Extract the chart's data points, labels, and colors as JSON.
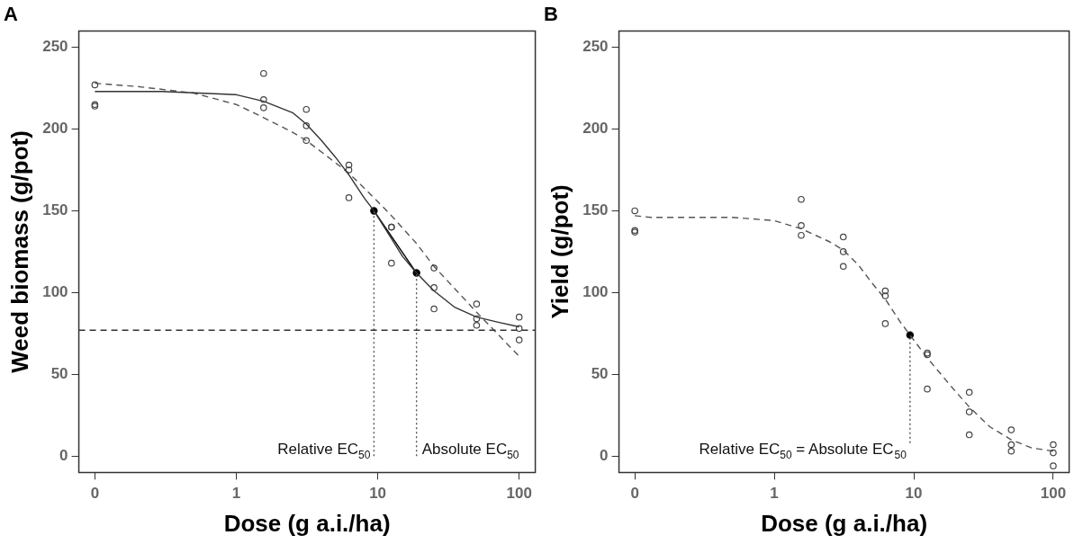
{
  "chart_data": [
    {
      "type": "scatter",
      "title": "A",
      "xlabel": "Dose (g a.i./ha)",
      "ylabel": "Weed biomass (g/pot)",
      "log": "x",
      "grid": false,
      "legend": false,
      "marker": "circle",
      "xlim": [
        0.077,
        130
      ],
      "xticks": [
        {
          "value": 0.1,
          "label": "0"
        },
        1,
        10,
        100
      ],
      "ylim": [
        -10,
        260
      ],
      "yticks": [
        0,
        50,
        100,
        150,
        200,
        250
      ],
      "series": [
        {
          "type": "scatter",
          "color": "#444444",
          "x": [
            0.1,
            0.1,
            0.1,
            1.56,
            1.56,
            1.56,
            3.125,
            3.125,
            3.125,
            6.25,
            6.25,
            6.25,
            12.5,
            12.5,
            12.5,
            25,
            25,
            25,
            50,
            50,
            50,
            100,
            100,
            100
          ],
          "values": [
            227,
            215,
            214,
            234,
            218,
            213,
            212,
            202,
            193,
            178,
            175,
            158,
            140,
            140,
            118,
            115,
            103,
            90,
            93,
            84,
            80,
            85,
            78,
            71
          ]
        },
        {
          "type": "line",
          "color": "#333333",
          "line_style": "solid",
          "marker": "none",
          "x": [
            0.1,
            0.3,
            1,
            1.56,
            2.5,
            3.125,
            4,
            5,
            6.25,
            8,
            9.4,
            12.5,
            15,
            18.8,
            25,
            35,
            50,
            70,
            100
          ],
          "values": [
            223,
            223,
            221,
            217,
            210,
            203,
            193,
            183,
            172,
            158,
            150,
            133,
            122,
            112,
            101,
            91,
            85,
            82,
            79
          ]
        },
        {
          "type": "line",
          "color": "#555555",
          "line_style": "dashed",
          "marker": "none",
          "x": [
            0.1,
            0.2,
            0.5,
            1,
            1.56,
            2.5,
            3.125,
            4,
            6.25,
            9.4,
            12.5,
            18.8,
            25,
            50,
            100
          ],
          "values": [
            228,
            226,
            222,
            215,
            207,
            198,
            193,
            186,
            173,
            158,
            147,
            130,
            116,
            88,
            61
          ]
        },
        {
          "type": "line",
          "color": "#555555",
          "line_style": "dotted",
          "marker": "none",
          "x": [
            9.4,
            9.4
          ],
          "values": [
            0,
            150
          ]
        },
        {
          "type": "line",
          "color": "#555555",
          "line_style": "dotted",
          "marker": "none",
          "x": [
            18.8,
            18.8
          ],
          "values": [
            0,
            112
          ]
        },
        {
          "type": "line",
          "color": "#000000",
          "marker": "circle",
          "x": [
            9.4,
            18.8
          ],
          "values": [
            150,
            112
          ]
        }
      ],
      "ref_lines": [
        {
          "axis": "y",
          "value": 77,
          "color": "#333333",
          "line_style": "dashed"
        }
      ],
      "annotations": [
        "Relative EC$_{50}$",
        "Absolute EC$_{50}$"
      ]
    },
    {
      "type": "scatter",
      "title": "B",
      "xlabel": "Dose (g a.i./ha)",
      "ylabel": "Yield (g/pot)",
      "log": "x",
      "grid": false,
      "legend": false,
      "marker": "circle",
      "xlim": [
        0.077,
        130
      ],
      "xticks": [
        {
          "value": 0.1,
          "label": "0"
        },
        1,
        10,
        100
      ],
      "ylim": [
        -10,
        260
      ],
      "yticks": [
        0,
        50,
        100,
        150,
        200,
        250
      ],
      "series": [
        {
          "type": "scatter",
          "color": "#444444",
          "x": [
            0.1,
            0.1,
            0.1,
            1.56,
            1.56,
            1.56,
            3.125,
            3.125,
            3.125,
            6.25,
            6.25,
            6.25,
            12.5,
            12.5,
            12.5,
            25,
            25,
            25,
            50,
            50,
            50,
            100,
            100,
            100
          ],
          "values": [
            150,
            138,
            137,
            157,
            141,
            135,
            134,
            125,
            116,
            101,
            98,
            81,
            63,
            62,
            41,
            39,
            27,
            13,
            16,
            7,
            3,
            7,
            2,
            -6
          ]
        },
        {
          "type": "line",
          "color": "#555555",
          "line_style": "dashed",
          "marker": "none",
          "x": [
            0.1,
            0.13,
            0.5,
            1,
            1.56,
            2.5,
            3.125,
            4,
            5,
            6.25,
            8,
            9.4,
            12.5,
            18.8,
            25,
            35,
            50,
            70,
            100
          ],
          "values": [
            147,
            146,
            146,
            144,
            139,
            131,
            126,
            117,
            106,
            96,
            82,
            74,
            60,
            42,
            30,
            18,
            10,
            5,
            3
          ]
        },
        {
          "type": "line",
          "color": "#555555",
          "line_style": "dotted",
          "marker": "none",
          "x": [
            9.4,
            9.4
          ],
          "values": [
            8,
            74
          ]
        },
        {
          "type": "line",
          "color": "#000000",
          "marker": "circle",
          "x": [
            9.4
          ],
          "values": [
            74
          ]
        }
      ],
      "annotations": [
        "Relative EC$_{50}$ = Absolute EC$_{50}$"
      ]
    }
  ]
}
